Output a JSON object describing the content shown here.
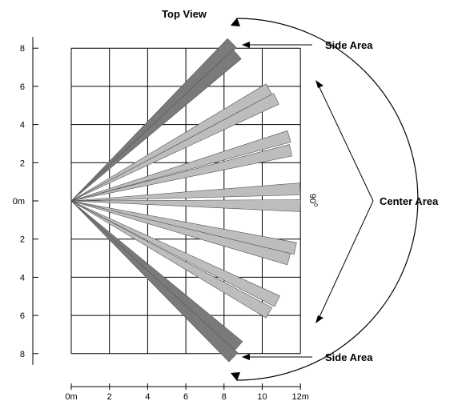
{
  "title": "Top View",
  "labels": {
    "side_area_top": "Side Area",
    "side_area_bottom": "Side Area",
    "center_area": "Center Area",
    "angle": "90",
    "angle_unit": "0"
  },
  "y_ticks": [
    {
      "label": "8",
      "value": 8
    },
    {
      "label": "6",
      "value": 6
    },
    {
      "label": "4",
      "value": 4
    },
    {
      "label": "2",
      "value": 2
    },
    {
      "label": "0m",
      "value": 0
    },
    {
      "label": "2",
      "value": -2
    },
    {
      "label": "4",
      "value": -4
    },
    {
      "label": "6",
      "value": -6
    },
    {
      "label": "8",
      "value": -8
    }
  ],
  "x_ticks": [
    {
      "label": "0m",
      "value": 0
    },
    {
      "label": "2",
      "value": 2
    },
    {
      "label": "4",
      "value": 4
    },
    {
      "label": "6",
      "value": 6
    },
    {
      "label": "8",
      "value": 8
    },
    {
      "label": "10",
      "value": 10
    },
    {
      "label": "12m",
      "value": 12
    }
  ],
  "beams": [
    {
      "zone": "side",
      "angle_deg": 44.5,
      "length_m": 11.8
    },
    {
      "zone": "side",
      "angle_deg": 41.5,
      "length_m": 11.6
    },
    {
      "zone": "center",
      "angle_deg": 29.5,
      "length_m": 11.9
    },
    {
      "zone": "center",
      "angle_deg": 26.5,
      "length_m": 12.0
    },
    {
      "zone": "center",
      "angle_deg": 16.5,
      "length_m": 11.9
    },
    {
      "zone": "center",
      "angle_deg": 13.0,
      "length_m": 11.8
    },
    {
      "zone": "center",
      "angle_deg": 3.0,
      "length_m": 12.0
    },
    {
      "zone": "center",
      "angle_deg": -1.2,
      "length_m": 12.0
    },
    {
      "zone": "center",
      "angle_deg": -12.0,
      "length_m": 12.0
    },
    {
      "zone": "center",
      "angle_deg": -15.0,
      "length_m": 11.8
    },
    {
      "zone": "center",
      "angle_deg": -26.0,
      "length_m": 12.0
    },
    {
      "zone": "center",
      "angle_deg": -29.5,
      "length_m": 11.9
    },
    {
      "zone": "side",
      "angle_deg": -41.0,
      "length_m": 11.6
    },
    {
      "zone": "side",
      "angle_deg": -44.0,
      "length_m": 11.8
    }
  ],
  "colors": {
    "side_beam": "#7a7a7a",
    "center_beam": "#bdbdbd",
    "grid": "#000000"
  }
}
